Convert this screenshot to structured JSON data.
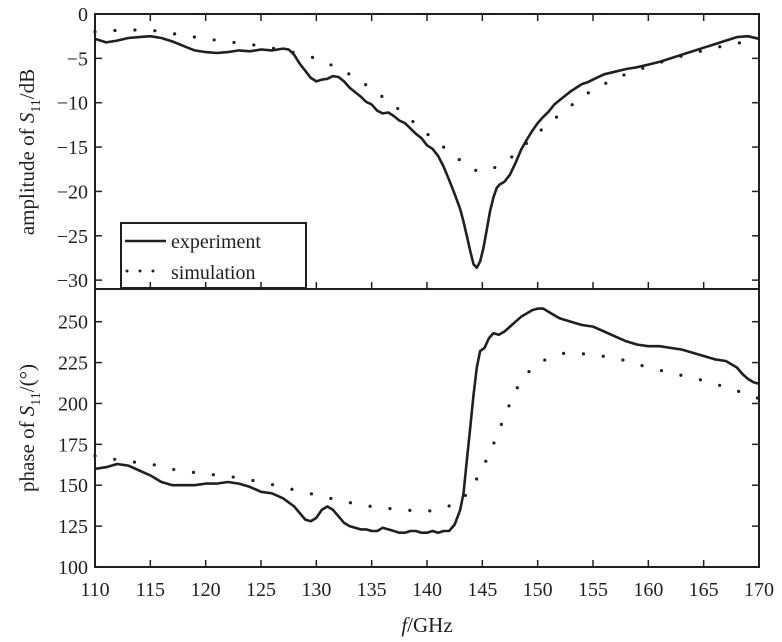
{
  "chart_data": [
    {
      "type": "line",
      "ylabel": {
        "prefix": "amplitude of ",
        "var": "S",
        "sub": "11",
        "suffix": "/dB"
      },
      "xlim": [
        110,
        170
      ],
      "ylim": [
        -31,
        0
      ],
      "yticks": [
        0,
        -5,
        -10,
        -15,
        -20,
        -25,
        -30
      ],
      "ytick_labels": [
        "0",
        "−5",
        "−10",
        "−15",
        "−20",
        "−25",
        "−30"
      ],
      "legend": {
        "placement": "bottom-left",
        "entries": [
          "experiment",
          "simulation"
        ]
      },
      "series": [
        {
          "name": "experiment",
          "style": "solid",
          "color": "#231f20",
          "x": [
            110,
            111,
            112,
            113,
            114,
            115,
            116,
            117,
            118,
            119,
            120,
            121,
            122,
            123,
            124,
            125,
            126,
            127,
            127.5,
            128,
            128.5,
            129,
            129.5,
            130,
            130.5,
            131,
            131.5,
            132,
            132.5,
            133,
            133.5,
            134,
            134.5,
            135,
            135.5,
            136,
            136.5,
            137,
            137.5,
            138,
            138.5,
            139,
            139.5,
            140,
            140.5,
            141,
            141.5,
            142,
            142.5,
            143,
            143.3,
            143.6,
            143.9,
            144.2,
            144.5,
            144.8,
            145.1,
            145.4,
            145.7,
            146,
            146.3,
            146.6,
            147,
            147.5,
            148,
            148.5,
            149,
            149.5,
            150,
            150.5,
            151,
            151.5,
            152,
            152.5,
            153,
            153.5,
            154,
            154.5,
            155,
            156,
            157,
            158,
            159,
            160,
            161,
            162,
            163,
            164,
            165,
            166,
            167,
            168,
            169,
            170
          ],
          "y": [
            -2.8,
            -3.2,
            -3.0,
            -2.7,
            -2.6,
            -2.5,
            -2.7,
            -3.1,
            -3.6,
            -4.1,
            -4.3,
            -4.4,
            -4.3,
            -4.1,
            -4.2,
            -4.0,
            -4.1,
            -3.9,
            -4.0,
            -4.6,
            -5.6,
            -6.4,
            -7.2,
            -7.6,
            -7.4,
            -7.3,
            -7.0,
            -7.1,
            -7.6,
            -8.3,
            -8.8,
            -9.3,
            -9.9,
            -10.2,
            -10.9,
            -11.2,
            -11.1,
            -11.5,
            -12.0,
            -12.3,
            -12.9,
            -13.5,
            -14.0,
            -14.8,
            -15.2,
            -16.0,
            -17.2,
            -18.7,
            -20.3,
            -22.0,
            -23.4,
            -25.0,
            -26.7,
            -28.2,
            -28.6,
            -27.9,
            -26.4,
            -24.3,
            -22.2,
            -20.7,
            -19.6,
            -19.2,
            -18.9,
            -18.1,
            -16.8,
            -15.3,
            -14.2,
            -13.2,
            -12.3,
            -11.6,
            -11.0,
            -10.2,
            -9.7,
            -9.2,
            -8.7,
            -8.3,
            -7.9,
            -7.7,
            -7.4,
            -6.8,
            -6.5,
            -6.2,
            -6.0,
            -5.7,
            -5.4,
            -5.0,
            -4.6,
            -4.2,
            -3.8,
            -3.4,
            -3.0,
            -2.6,
            -2.5,
            -2.8
          ]
        },
        {
          "name": "simulation",
          "style": "dotted",
          "color": "#231f20",
          "x": [
            110,
            112.5,
            115,
            117.5,
            120,
            122.5,
            125,
            127.5,
            130,
            132.5,
            135,
            137.5,
            140,
            141.5,
            143,
            144,
            145,
            146,
            147.5,
            150,
            152.5,
            155,
            157.5,
            160,
            162.5,
            165,
            167.5,
            170
          ],
          "y": [
            -2.0,
            -1.8,
            -1.8,
            -2.3,
            -2.8,
            -3.2,
            -3.6,
            -4.2,
            -5.0,
            -6.4,
            -8.4,
            -10.8,
            -13.5,
            -15.0,
            -16.5,
            -17.5,
            -17.8,
            -17.4,
            -16.3,
            -13.4,
            -10.8,
            -8.5,
            -7.0,
            -5.9,
            -4.9,
            -4.1,
            -3.4,
            -2.9
          ]
        }
      ]
    },
    {
      "type": "line",
      "ylabel": {
        "prefix": "phase of ",
        "var": "S",
        "sub": "11",
        "suffix": "/(°)"
      },
      "xlabel": {
        "var": "f",
        "suffix": "/GHz"
      },
      "xlim": [
        110,
        170
      ],
      "ylim": [
        100,
        270
      ],
      "xticks": [
        110,
        115,
        120,
        125,
        130,
        135,
        140,
        145,
        150,
        155,
        160,
        165,
        170
      ],
      "xtick_labels": [
        "110",
        "115",
        "120",
        "125",
        "130",
        "135",
        "140",
        "145",
        "150",
        "155",
        "160",
        "165",
        "170"
      ],
      "yticks": [
        100,
        125,
        150,
        175,
        200,
        225,
        250
      ],
      "ytick_labels": [
        "100",
        "125",
        "150",
        "175",
        "200",
        "225",
        "250"
      ],
      "series": [
        {
          "name": "experiment",
          "style": "solid",
          "color": "#231f20",
          "x": [
            110,
            111,
            112,
            113,
            114,
            115,
            116,
            117,
            118,
            119,
            120,
            121,
            122,
            123,
            124,
            125,
            126,
            127,
            128,
            128.5,
            129,
            129.5,
            130,
            130.5,
            131,
            131.5,
            132,
            132.5,
            133,
            133.5,
            134,
            134.5,
            135,
            135.5,
            136,
            136.5,
            137,
            137.5,
            138,
            138.5,
            139,
            139.5,
            140,
            140.5,
            141,
            141.5,
            142,
            142.5,
            143,
            143.3,
            143.6,
            143.9,
            144.2,
            144.5,
            144.8,
            145.2,
            145.6,
            146,
            146.5,
            147,
            147.5,
            148,
            148.5,
            149,
            149.5,
            150,
            150.5,
            151,
            151.5,
            152,
            153,
            154,
            155,
            156,
            157,
            158,
            159,
            160,
            161,
            162,
            163,
            164,
            165,
            166,
            167,
            168,
            168.5,
            169,
            169.5,
            170
          ],
          "y": [
            160,
            161,
            163,
            162,
            159,
            156,
            152,
            150,
            150,
            150,
            151,
            151,
            152,
            151,
            149,
            146,
            145,
            142,
            137,
            133,
            129,
            128,
            130,
            135,
            137,
            135,
            131,
            127,
            125,
            124,
            123,
            123,
            122,
            122,
            124,
            123,
            122,
            121,
            121,
            122,
            122,
            121,
            121,
            122,
            121,
            122,
            122,
            126,
            135,
            145,
            165,
            185,
            205,
            222,
            232,
            234,
            240,
            243,
            242,
            244,
            247,
            250,
            253,
            255,
            257,
            258,
            258,
            256,
            254,
            252,
            250,
            248,
            247,
            244,
            241,
            238,
            236,
            235,
            235,
            234,
            233,
            231,
            229,
            227,
            226,
            222,
            218,
            215,
            213,
            212
          ]
        },
        {
          "name": "simulation",
          "style": "dotted",
          "color": "#231f20",
          "x": [
            110,
            112.5,
            115,
            117.5,
            120,
            122.5,
            125,
            127.5,
            130,
            132.5,
            135,
            137.5,
            140,
            141.5,
            143,
            144,
            145,
            146,
            147,
            148,
            149,
            150,
            152.5,
            155,
            157.5,
            160,
            162.5,
            165,
            167.5,
            170
          ],
          "y": [
            168,
            165,
            163,
            159,
            157,
            155,
            152,
            148,
            144,
            140,
            137,
            135,
            134,
            136,
            140,
            148,
            160,
            175,
            192,
            208,
            218,
            225,
            231,
            230,
            227,
            222,
            218,
            214,
            209,
            203
          ]
        }
      ]
    }
  ]
}
